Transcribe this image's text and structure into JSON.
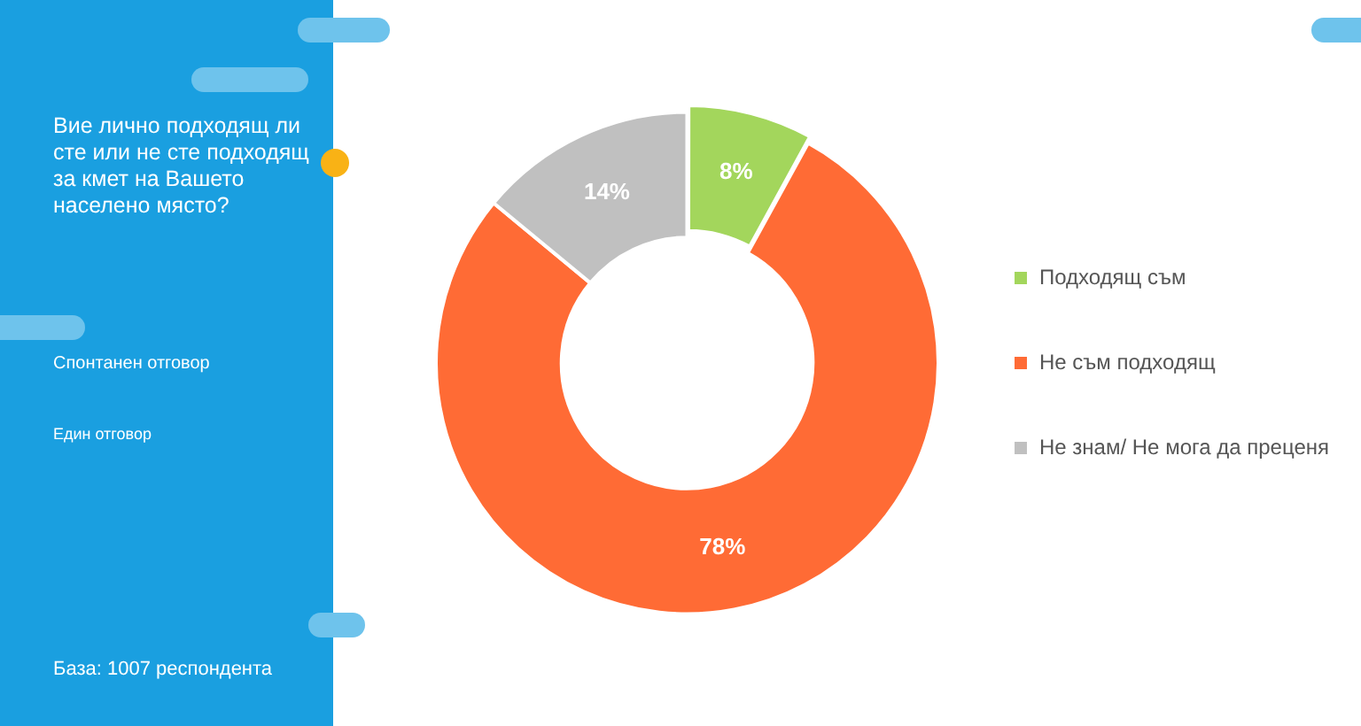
{
  "chart_data": {
    "type": "donut",
    "title": "Вие лично подходящ ли сте или не сте подходящ за кмет на Вашето населено място?",
    "annotations": [
      "Спонтанен отговор",
      "Един отговор",
      "База: 1007 респондента"
    ],
    "categories": [
      "Подходящ съм",
      "Не съм подходящ",
      "Не знам/ Не мога да преценя"
    ],
    "values": [
      8,
      78,
      14
    ],
    "colors": [
      "#a3d65c",
      "#ff6b35",
      "#c0c0c0"
    ],
    "value_labels": [
      "8%",
      "78%",
      "14%"
    ],
    "legend": "right"
  }
}
